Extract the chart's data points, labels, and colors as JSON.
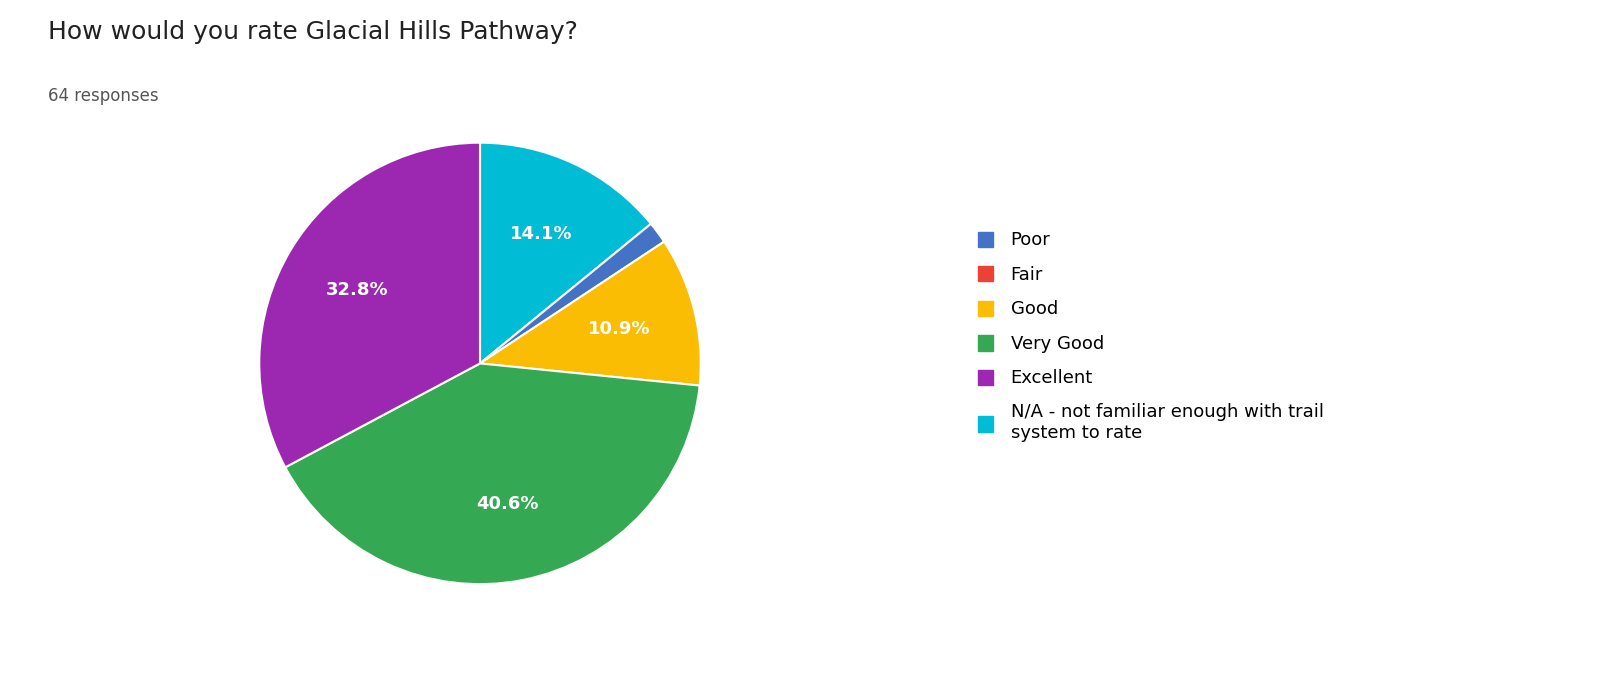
{
  "title": "How would you rate Glacial Hills Pathway?",
  "subtitle": "64 responses",
  "legend_labels": [
    "Poor",
    "Fair",
    "Good",
    "Very Good",
    "Excellent",
    "N/A - not familiar enough with trail\nsystem to rate"
  ],
  "sizes": [
    1.6,
    0.0,
    10.9,
    40.6,
    32.8,
    14.1
  ],
  "colors": [
    "#4472C4",
    "#EA4335",
    "#FBBC04",
    "#34A853",
    "#9C27B0",
    "#00BCD4"
  ],
  "pct_labels": [
    "",
    "",
    "10.9%",
    "40.6%",
    "32.8%",
    "14.1%"
  ],
  "title_fontsize": 18,
  "subtitle_fontsize": 12,
  "label_fontsize": 13,
  "legend_fontsize": 13,
  "background_color": "#ffffff"
}
